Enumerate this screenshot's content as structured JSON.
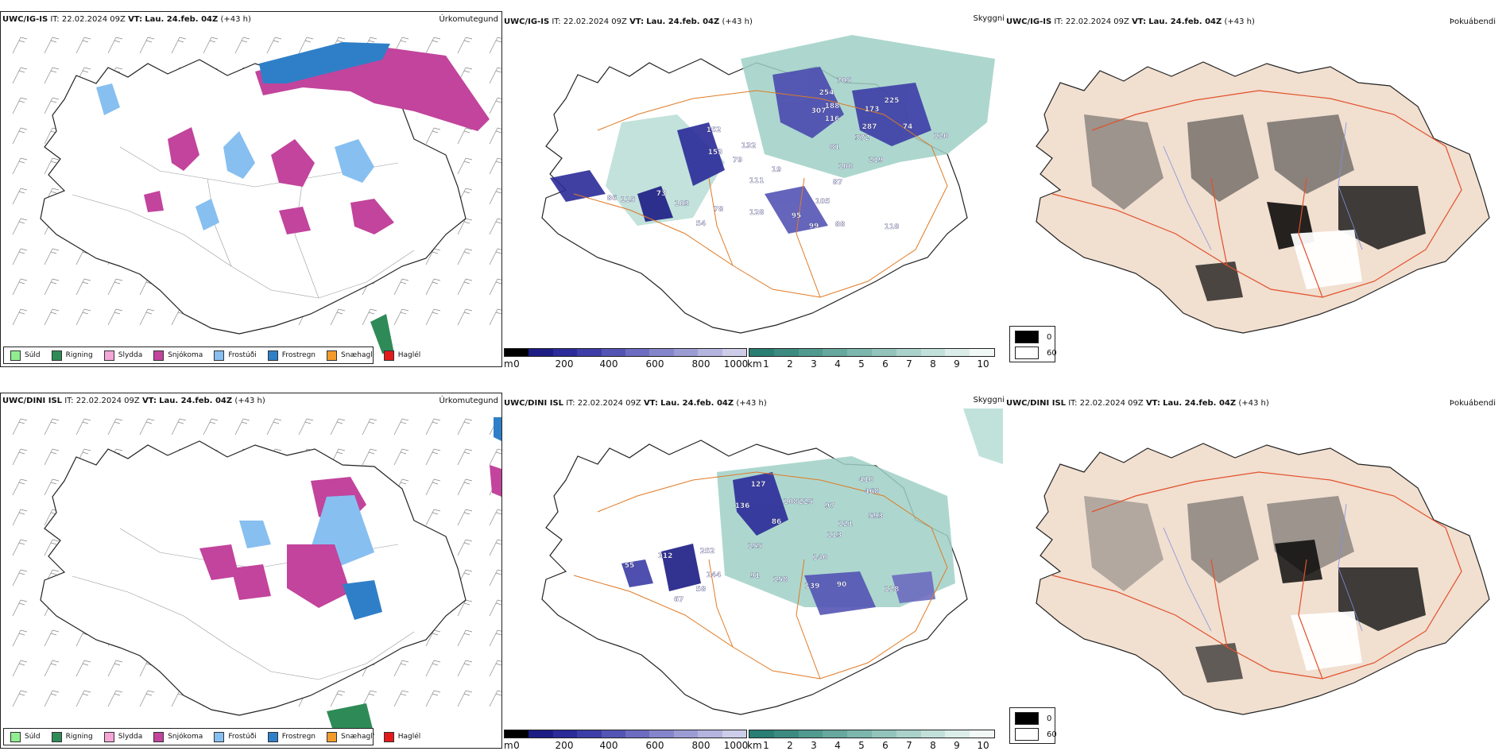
{
  "rows": [
    {
      "model": "UWC/IG-IS",
      "it_label": "IT:",
      "it_value": "22.02.2024 09Z",
      "vt_label": "VT:",
      "vt_value": "Lau. 24.feb. 04Z",
      "lead": "(+43 h)"
    },
    {
      "model": "UWC/DINI ISL",
      "it_label": "IT:",
      "it_value": "22.02.2024 09Z",
      "vt_label": "VT:",
      "vt_value": "Lau. 24.feb. 04Z",
      "lead": "(+43 h)"
    }
  ],
  "fields": {
    "precip_type": "Úrkomutegund",
    "cloud_base": "Skyggni",
    "fog": "Þokuábendi"
  },
  "precip_legend": [
    {
      "label": "Súld",
      "color": "#90ee90"
    },
    {
      "label": "Rigning",
      "color": "#2e8b57"
    },
    {
      "label": "Slydda",
      "color": "#f4a6d7"
    },
    {
      "label": "Snjókoma",
      "color": "#c2449c"
    },
    {
      "label": "Frostúði",
      "color": "#87bff0"
    },
    {
      "label": "Frostregn",
      "color": "#2f7fc8"
    },
    {
      "label": "Snæhagl",
      "color": "#f39b2b"
    },
    {
      "label": "Haglél",
      "color": "#e31a1c"
    }
  ],
  "height_colorbar": {
    "unit": "m",
    "ticks": [
      "0",
      "200",
      "400",
      "600",
      "800",
      "1000"
    ],
    "colors": [
      "#000000",
      "#1c1c84",
      "#2b2b99",
      "#3d3da8",
      "#5454b5",
      "#6c6cc0",
      "#8585cb",
      "#9c9cd5",
      "#b4b4df",
      "#cdcde9"
    ]
  },
  "vis_colorbar": {
    "unit": "km",
    "ticks": [
      "1",
      "2",
      "3",
      "4",
      "5",
      "6",
      "7",
      "8",
      "9",
      "10"
    ],
    "colors": [
      "#2a7e73",
      "#3d8b80",
      "#509a8f",
      "#66a89e",
      "#7cb6ad",
      "#93c4bc",
      "#aad2cb",
      "#c2e0da",
      "#daede9",
      "#f1f8f6"
    ]
  },
  "fog_legend": {
    "items": [
      {
        "label": "0",
        "color": "#000000"
      },
      {
        "label": "60",
        "color": "#ffffff"
      }
    ]
  },
  "cloud_labels_top": [
    "705",
    "225",
    "254",
    "188",
    "307",
    "173",
    "116",
    "287",
    "372",
    "74",
    "120",
    "81",
    "219",
    "100",
    "87",
    "105",
    "95",
    "99",
    "88",
    "118",
    "111",
    "19",
    "79",
    "115",
    "78",
    "54",
    "128",
    "152",
    "86",
    "153",
    "103",
    "73",
    "132"
  ],
  "cloud_labels_bottom": [
    "410",
    "468",
    "593",
    "97",
    "121",
    "113",
    "140",
    "90",
    "128",
    "139",
    "158",
    "91",
    "155",
    "144",
    "58",
    "67",
    "252",
    "108",
    "225",
    "127",
    "136",
    "86",
    "112",
    "55"
  ]
}
